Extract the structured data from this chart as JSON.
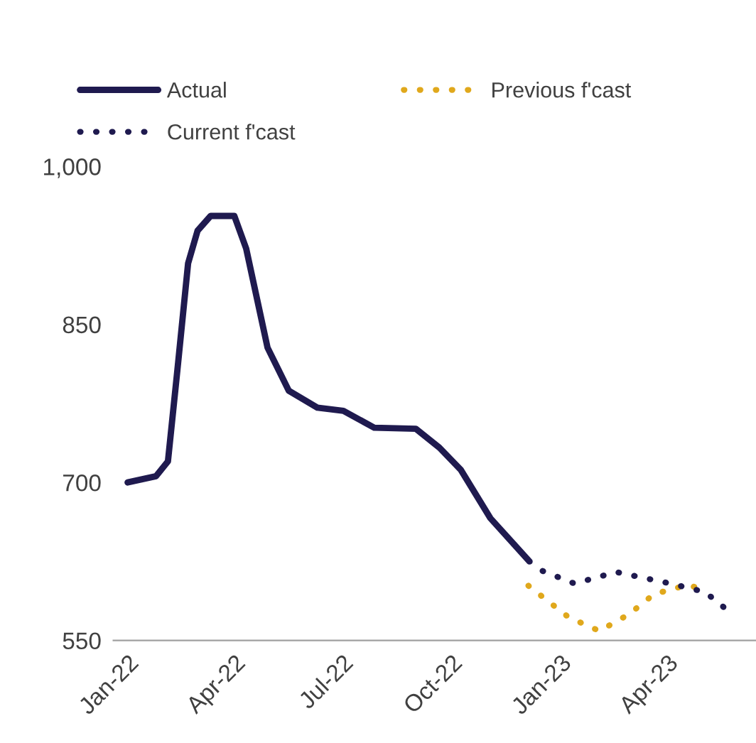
{
  "chart_data": {
    "type": "line",
    "ylim": [
      550,
      1000
    ],
    "yticks": [
      550,
      {
        "value": 700,
        "label": "700"
      },
      850,
      {
        "value": 1000,
        "label": "1,000"
      }
    ],
    "xlim": [
      "2021-12-20",
      "2023-06-15"
    ],
    "xticks": [
      {
        "value": "2022-01-01",
        "label": "Jan-22"
      },
      {
        "value": "2022-04-01",
        "label": "Apr-22"
      },
      {
        "value": "2022-07-01",
        "label": "Jul-22"
      },
      {
        "value": "2022-10-01",
        "label": "Oct-22"
      },
      {
        "value": "2023-01-01",
        "label": "Jan-23"
      },
      {
        "value": "2023-04-01",
        "label": "Apr-23"
      }
    ],
    "grid": false,
    "legend": "top",
    "marker": "none",
    "series": [
      {
        "name": "Actual",
        "color": "#1f1a4f",
        "line_style": "solid",
        "x": [
          "2022-01-01",
          "2022-01-25",
          "2022-02-04",
          "2022-02-12",
          "2022-02-21",
          "2022-03-01",
          "2022-03-12",
          "2022-04-01",
          "2022-04-11",
          "2022-04-29",
          "2022-05-17",
          "2022-06-10",
          "2022-07-02",
          "2022-07-28",
          "2022-09-01",
          "2022-09-21",
          "2022-10-09",
          "2022-11-03",
          "2022-12-06"
        ],
        "values": [
          700,
          706,
          720,
          807,
          908,
          939,
          953,
          953,
          922,
          828,
          787,
          771,
          768,
          752,
          751,
          733,
          712,
          666,
          625
        ]
      },
      {
        "name": "Previous f'cast",
        "color": "#e0a81c",
        "line_style": "dotted",
        "x": [
          "2022-12-05",
          "2023-01-08",
          "2023-02-03",
          "2023-02-28",
          "2023-03-21",
          "2023-04-16",
          "2023-05-01"
        ],
        "values": [
          602,
          572,
          559,
          575,
          594,
          602,
          600
        ]
      },
      {
        "name": "Current f'cast",
        "color": "#1f1a4f",
        "line_style": "dotted",
        "x": [
          "2022-12-17",
          "2023-01-13",
          "2023-02-17",
          "2023-04-04",
          "2023-05-03",
          "2023-05-26"
        ],
        "values": [
          616,
          604,
          615,
          604,
          596,
          575
        ]
      }
    ]
  }
}
